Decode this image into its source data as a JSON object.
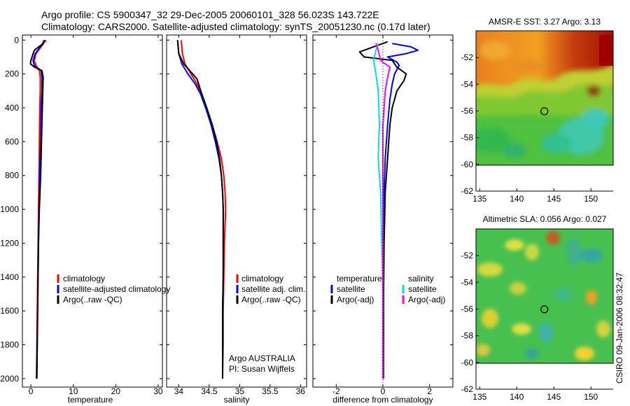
{
  "header": {
    "line1": "Argo profile: CS 5900347_32 29-Dec-2005 20060101_328 56.023S 143.722E",
    "line2": "Climatology: CARS2000. Satellite-adjusted climatology: synTS_20051230.nc (0.17d later)"
  },
  "colors": {
    "climatology": "#ff0000",
    "satellite": "#0000ff",
    "argo": "#000000",
    "sal_satellite": "#00e0e0",
    "sal_argo": "#ff00ff"
  },
  "chart_data": [
    {
      "type": "line",
      "id": "temperature",
      "xlabel": "temperature",
      "xlim": [
        -2,
        31
      ],
      "ylim": [
        2050,
        -30
      ],
      "x_ticks": [
        0,
        10,
        20,
        30
      ],
      "y_ticks": [
        0,
        200,
        400,
        600,
        800,
        1000,
        1200,
        1400,
        1600,
        1800,
        2000
      ],
      "legend": [
        "climatology",
        "satellite-adjusted climatology",
        "Argo(..raw -QC)"
      ],
      "series": [
        {
          "name": "climatology",
          "color": "#ff0000",
          "points": [
            [
              3.6,
              0
            ],
            [
              2.4,
              40
            ],
            [
              1.2,
              80
            ],
            [
              0.8,
              120
            ],
            [
              1.2,
              150
            ],
            [
              2.0,
              180
            ],
            [
              2.2,
              220
            ],
            [
              2.2,
              300
            ],
            [
              2.1,
              400
            ],
            [
              2.0,
              600
            ],
            [
              1.9,
              800
            ],
            [
              1.8,
              1000
            ],
            [
              1.7,
              1200
            ],
            [
              1.6,
              1400
            ],
            [
              1.5,
              1600
            ],
            [
              1.4,
              1800
            ],
            [
              1.3,
              2000
            ]
          ]
        },
        {
          "name": "satellite-adjusted climatology",
          "color": "#0000ff",
          "points": [
            [
              3.3,
              0
            ],
            [
              2.2,
              40
            ],
            [
              1.0,
              80
            ],
            [
              0.5,
              120
            ],
            [
              0.8,
              150
            ],
            [
              2.4,
              180
            ],
            [
              2.6,
              220
            ],
            [
              2.6,
              300
            ],
            [
              2.4,
              400
            ],
            [
              2.3,
              600
            ],
            [
              2.1,
              800
            ],
            [
              1.9,
              1000
            ],
            [
              1.8,
              1200
            ],
            [
              1.7,
              1400
            ],
            [
              1.6,
              1600
            ],
            [
              1.5,
              1800
            ],
            [
              1.4,
              2000
            ]
          ]
        },
        {
          "name": "Argo(..raw -QC)",
          "color": "#000000",
          "points": [
            [
              3.1,
              0
            ],
            [
              2.9,
              20
            ],
            [
              0.8,
              60
            ],
            [
              0.0,
              120
            ],
            [
              -0.1,
              140
            ],
            [
              0.8,
              160
            ],
            [
              2.6,
              180
            ],
            [
              2.9,
              220
            ],
            [
              2.8,
              300
            ],
            [
              2.7,
              400
            ],
            [
              2.5,
              600
            ],
            [
              2.3,
              800
            ],
            [
              2.0,
              1000
            ],
            [
              1.8,
              1200
            ],
            [
              1.7,
              1400
            ],
            [
              1.6,
              1600
            ],
            [
              1.5,
              1800
            ],
            [
              1.4,
              2000
            ]
          ]
        }
      ]
    },
    {
      "type": "line",
      "id": "salinity",
      "xlabel": "salinity",
      "xlim": [
        33.8,
        36.1
      ],
      "ylim": [
        2050,
        -30
      ],
      "x_ticks": [
        34,
        34.5,
        35,
        35.5,
        36
      ],
      "x_tick_labels": [
        "34",
        "34.5",
        "35",
        "35.5",
        "36"
      ],
      "legend": [
        "climatology",
        "satellite adj. clim.",
        "Argo(..raw -QC)"
      ],
      "notes": [
        "Argo AUSTRALIA",
        "PI: Susan Wijffels"
      ],
      "series": [
        {
          "name": "climatology",
          "color": "#ff0000",
          "points": [
            [
              34.04,
              0
            ],
            [
              34.05,
              40
            ],
            [
              34.06,
              80
            ],
            [
              34.1,
              140
            ],
            [
              34.2,
              200
            ],
            [
              34.3,
              260
            ],
            [
              34.38,
              320
            ],
            [
              34.45,
              400
            ],
            [
              34.55,
              500
            ],
            [
              34.63,
              600
            ],
            [
              34.7,
              700
            ],
            [
              34.74,
              800
            ],
            [
              34.76,
              900
            ],
            [
              34.77,
              1000
            ],
            [
              34.75,
              1200
            ],
            [
              34.74,
              1400
            ],
            [
              34.73,
              1600
            ],
            [
              34.73,
              1800
            ],
            [
              34.72,
              2000
            ]
          ]
        },
        {
          "name": "satellite adj. clim.",
          "color": "#0000ff",
          "points": [
            [
              33.98,
              0
            ],
            [
              33.99,
              40
            ],
            [
              34.0,
              80
            ],
            [
              34.05,
              140
            ],
            [
              34.15,
              200
            ],
            [
              34.27,
              260
            ],
            [
              34.36,
              320
            ],
            [
              34.44,
              400
            ],
            [
              34.53,
              500
            ],
            [
              34.6,
              600
            ],
            [
              34.66,
              700
            ],
            [
              34.7,
              800
            ],
            [
              34.72,
              900
            ],
            [
              34.73,
              1000
            ],
            [
              34.73,
              1200
            ],
            [
              34.73,
              1400
            ],
            [
              34.72,
              1600
            ],
            [
              34.72,
              1800
            ],
            [
              34.72,
              2000
            ]
          ]
        },
        {
          "name": "Argo(..raw -QC)",
          "color": "#000000",
          "points": [
            [
              33.98,
              0
            ],
            [
              33.99,
              40
            ],
            [
              34.0,
              80
            ],
            [
              34.08,
              140
            ],
            [
              34.18,
              180
            ],
            [
              34.3,
              230
            ],
            [
              34.38,
              320
            ],
            [
              34.46,
              400
            ],
            [
              34.55,
              500
            ],
            [
              34.62,
              600
            ],
            [
              34.67,
              700
            ],
            [
              34.7,
              800
            ],
            [
              34.72,
              900
            ],
            [
              34.73,
              1000
            ],
            [
              34.73,
              1200
            ],
            [
              34.73,
              1400
            ],
            [
              34.72,
              1600
            ],
            [
              34.72,
              1800
            ],
            [
              34.72,
              2000
            ]
          ]
        }
      ]
    },
    {
      "type": "line",
      "id": "difference",
      "xlabel": "difference from climatology",
      "xlim": [
        -3,
        3
      ],
      "ylim": [
        2050,
        -30
      ],
      "x_ticks": [
        -2,
        0,
        2
      ],
      "legend_titles": [
        "temperature",
        "salinity"
      ],
      "legend_temperature": [
        "satellite",
        "Argo(-adj)"
      ],
      "legend_salinity": [
        "satellite",
        "Argo(-adj)"
      ],
      "series": [
        {
          "name": "satellite (temperature)",
          "color": "#0000ff",
          "points": [
            [
              0.4,
              20
            ],
            [
              1.2,
              40
            ],
            [
              1.5,
              60
            ],
            [
              1.0,
              80
            ],
            [
              0.2,
              100
            ],
            [
              0.6,
              130
            ],
            [
              0.7,
              150
            ],
            [
              0.5,
              200
            ],
            [
              0.4,
              260
            ],
            [
              0.3,
              350
            ],
            [
              0.2,
              500
            ],
            [
              0.1,
              700
            ],
            [
              0.05,
              900
            ],
            [
              0.03,
              1200
            ],
            [
              0.02,
              1500
            ],
            [
              0.02,
              2000
            ]
          ]
        },
        {
          "name": "Argo(-adj) (temperature)",
          "color": "#000000",
          "points": [
            [
              0.2,
              10
            ],
            [
              -1.0,
              70
            ],
            [
              -0.8,
              100
            ],
            [
              0.4,
              120
            ],
            [
              0.6,
              160
            ],
            [
              1.0,
              200
            ],
            [
              0.9,
              240
            ],
            [
              0.6,
              300
            ],
            [
              0.4,
              400
            ],
            [
              0.3,
              500
            ],
            [
              0.2,
              700
            ],
            [
              0.1,
              900
            ],
            [
              0.05,
              1200
            ],
            [
              0.03,
              1500
            ],
            [
              0.02,
              2000
            ]
          ]
        },
        {
          "name": "satellite (salinity)",
          "color": "#00e0e0",
          "points": [
            [
              -0.2,
              20
            ],
            [
              -0.3,
              60
            ],
            [
              -0.4,
              120
            ],
            [
              -0.3,
              200
            ],
            [
              -0.2,
              300
            ],
            [
              -0.15,
              500
            ],
            [
              -0.2,
              700
            ],
            [
              -0.1,
              900
            ],
            [
              -0.05,
              1200
            ],
            [
              0.0,
              1500
            ],
            [
              0.0,
              2000
            ]
          ]
        },
        {
          "name": "Argo(-adj) (salinity)",
          "color": "#ff00ff",
          "points": [
            [
              -0.3,
              20
            ],
            [
              -0.2,
              60
            ],
            [
              -0.1,
              120
            ],
            [
              0.3,
              160
            ],
            [
              0.2,
              220
            ],
            [
              0.1,
              300
            ],
            [
              0.0,
              500
            ],
            [
              0.0,
              700
            ],
            [
              0.0,
              1000
            ],
            [
              0.0,
              1500
            ],
            [
              0.0,
              2000
            ]
          ]
        }
      ]
    },
    {
      "type": "heatmap",
      "id": "sst-map",
      "title": "AMSR-E SST: 3.27  Argo: 3.13",
      "xlim": [
        134.5,
        153
      ],
      "ylim": [
        -62,
        -50
      ],
      "x_ticks": [
        135,
        140,
        145,
        150
      ],
      "y_ticks": [
        -52,
        -54,
        -56,
        -58,
        -60,
        -62
      ],
      "marker": {
        "lon": 143.722,
        "lat": -56.023
      }
    },
    {
      "type": "heatmap",
      "id": "sla-map",
      "title": "Altimetric SLA: 0.056  Argo: 0.027",
      "xlim": [
        134.5,
        153
      ],
      "ylim": [
        -62,
        -50
      ],
      "x_ticks": [
        135,
        140,
        145,
        150
      ],
      "y_ticks": [
        -52,
        -54,
        -56,
        -58,
        -60,
        -62
      ],
      "marker": {
        "lon": 143.722,
        "lat": -56.023
      }
    }
  ],
  "footer": {
    "stamp": "CSIRO 09-Jan-2006 08:32:47"
  }
}
